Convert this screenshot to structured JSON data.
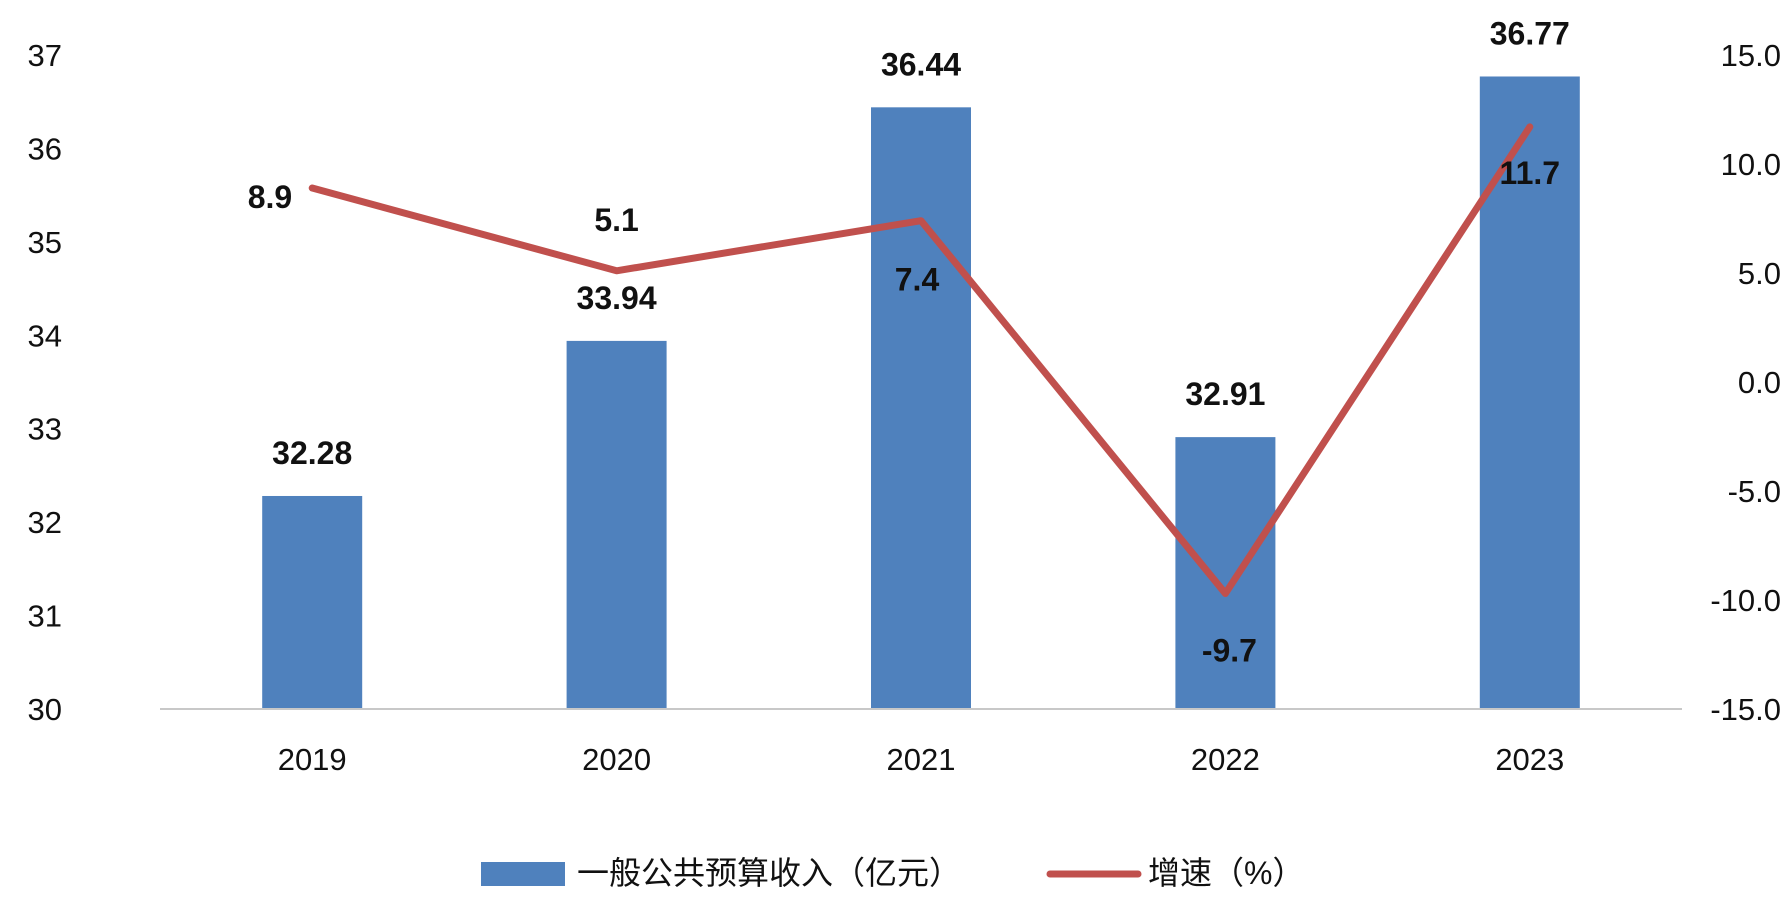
{
  "chart_data": {
    "type": "bar",
    "categories": [
      "2019",
      "2020",
      "2021",
      "2022",
      "2023"
    ],
    "series": [
      {
        "name": "一般公共预算收入（亿元）",
        "type": "bar",
        "axis": "left",
        "color": "#4F81BD",
        "values": [
          32.28,
          33.94,
          36.44,
          32.91,
          36.77
        ],
        "labels": [
          "32.28",
          "33.94",
          "36.44",
          "32.91",
          "36.77"
        ]
      },
      {
        "name": "增速（%）",
        "type": "line",
        "axis": "right",
        "color": "#C0504D",
        "values": [
          8.9,
          5.1,
          7.4,
          -9.7,
          11.7
        ],
        "labels": [
          "8.9",
          "5.1",
          "7.4",
          "-9.7",
          "11.7"
        ]
      }
    ],
    "y_left": {
      "min": 30,
      "max": 37,
      "ticks": [
        "30",
        "31",
        "32",
        "33",
        "34",
        "35",
        "36",
        "37"
      ]
    },
    "y_right": {
      "min": -15,
      "max": 15,
      "ticks": [
        "-15.0",
        "-10.0",
        "-5.0",
        "0.0",
        "5.0",
        "10.0",
        "15.0"
      ]
    },
    "legend": {
      "position": "bottom",
      "items": [
        "一般公共预算收入（亿元）",
        "增速（%）"
      ]
    },
    "grid": false
  }
}
